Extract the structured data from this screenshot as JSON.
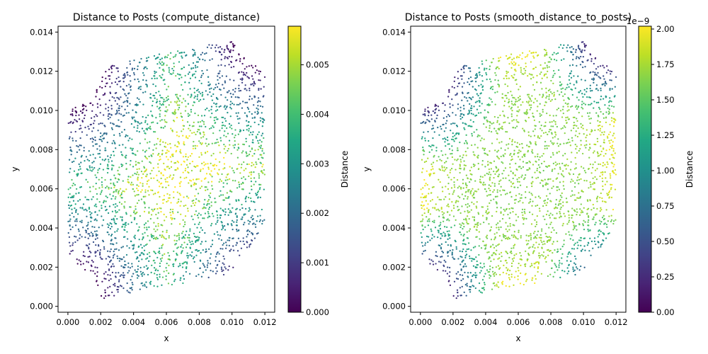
{
  "chart_data": [
    {
      "type": "scatter",
      "title": "Distance to Posts (compute_distance)",
      "xlabel": "x",
      "ylabel": "y",
      "xlim": [
        -0.0006,
        0.0126
      ],
      "ylim": [
        -0.0003,
        0.0143
      ],
      "xticks": [
        "0.000",
        "0.002",
        "0.004",
        "0.006",
        "0.008",
        "0.010",
        "0.012"
      ],
      "yticks": [
        "0.000",
        "0.002",
        "0.004",
        "0.006",
        "0.008",
        "0.010",
        "0.012",
        "0.014"
      ],
      "grid": false,
      "colormap": "viridis",
      "colorbar": {
        "label": "Distance",
        "min": 0.0,
        "max": 0.00578,
        "ticks": [
          "0.000",
          "0.001",
          "0.002",
          "0.003",
          "0.004",
          "0.005"
        ],
        "offset_text": ""
      },
      "domain": {
        "polygon": [
          [
            0.0,
            0.0021
          ],
          [
            0.0021,
            0.0004
          ],
          [
            0.0098,
            0.0016
          ],
          [
            0.012,
            0.0041
          ],
          [
            0.012,
            0.0119
          ],
          [
            0.0099,
            0.0136
          ],
          [
            0.0021,
            0.0123
          ],
          [
            0.0,
            0.0099
          ]
        ],
        "post_centers": [
          [
            0.0,
            0.0
          ],
          [
            0.0121,
            0.0
          ],
          [
            0.0,
            0.0122
          ],
          [
            0.0121,
            0.0143
          ]
        ],
        "post_radius": 0.0021
      },
      "field": "nearest_post_distance"
    },
    {
      "type": "scatter",
      "title": "Distance to Posts (smooth_distance_to_posts)",
      "xlabel": "x",
      "ylabel": "y",
      "xlim": [
        -0.0006,
        0.0126
      ],
      "ylim": [
        -0.0003,
        0.0143
      ],
      "xticks": [
        "0.000",
        "0.002",
        "0.004",
        "0.006",
        "0.008",
        "0.010",
        "0.012"
      ],
      "yticks": [
        "0.000",
        "0.002",
        "0.004",
        "0.006",
        "0.008",
        "0.010",
        "0.012",
        "0.014"
      ],
      "grid": false,
      "colormap": "viridis",
      "colorbar": {
        "label": "Distance",
        "min": 0.0,
        "max": 2.02,
        "ticks": [
          "0.00",
          "0.25",
          "0.50",
          "0.75",
          "1.00",
          "1.25",
          "1.50",
          "1.75",
          "2.00"
        ],
        "offset_text": "1e−9"
      },
      "domain": {
        "polygon": [
          [
            0.0,
            0.0021
          ],
          [
            0.0021,
            0.0004
          ],
          [
            0.0098,
            0.0016
          ],
          [
            0.012,
            0.0041
          ],
          [
            0.012,
            0.0119
          ],
          [
            0.0099,
            0.0136
          ],
          [
            0.0021,
            0.0123
          ],
          [
            0.0,
            0.0099
          ]
        ],
        "post_centers": [
          [
            0.0,
            0.0
          ],
          [
            0.0121,
            0.0
          ],
          [
            0.0,
            0.0122
          ],
          [
            0.0121,
            0.0143
          ]
        ],
        "post_radius": 0.0021
      },
      "field": "smooth_distance"
    }
  ]
}
